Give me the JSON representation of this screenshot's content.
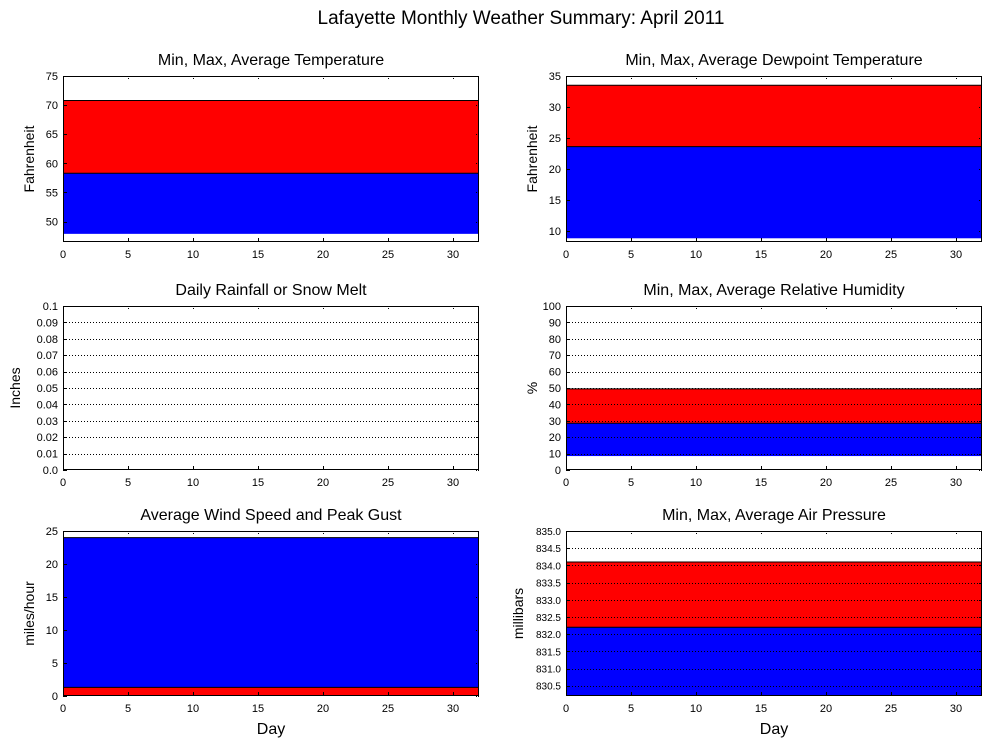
{
  "figure": {
    "title": "Lafayette Monthly Weather Summary: April 2011",
    "xlabel": "Day"
  },
  "chart_data": [
    {
      "type": "area",
      "title": "Min, Max, Average Temperature",
      "xlabel": "",
      "ylabel": "Fahrenheit",
      "xlim": [
        0,
        32
      ],
      "ylim": [
        46.5,
        75
      ],
      "xticks": [
        0,
        5,
        10,
        15,
        20,
        25,
        30
      ],
      "yticks": [
        50,
        55,
        60,
        65,
        70,
        75
      ],
      "ytick_labels": [
        "50",
        "55",
        "60",
        "65",
        "70",
        "75"
      ],
      "grid": false,
      "series": [
        {
          "color": "#ff0000",
          "y_low": 58.3,
          "y_high": 70.8
        },
        {
          "color": "#0000ff",
          "y_low": 47.9,
          "y_high": 58.3
        }
      ]
    },
    {
      "type": "area",
      "title": "Min, Max, Average Dewpoint Temperature",
      "xlabel": "",
      "ylabel": "Fahrenheit",
      "xlim": [
        0,
        32
      ],
      "ylim": [
        8.2,
        35
      ],
      "xticks": [
        0,
        5,
        10,
        15,
        20,
        25,
        30
      ],
      "yticks": [
        10,
        15,
        20,
        25,
        30,
        35
      ],
      "ytick_labels": [
        "10",
        "15",
        "20",
        "25",
        "30",
        "35"
      ],
      "grid": false,
      "series": [
        {
          "color": "#ff0000",
          "y_low": 23.6,
          "y_high": 33.5
        },
        {
          "color": "#0000ff",
          "y_low": 8.8,
          "y_high": 23.6
        }
      ]
    },
    {
      "type": "bar",
      "title": "Daily Rainfall or Snow Melt",
      "xlabel": "",
      "ylabel": "Inches",
      "xlim": [
        0,
        32
      ],
      "ylim": [
        0,
        0.1
      ],
      "xticks": [
        0,
        5,
        10,
        15,
        20,
        25,
        30
      ],
      "yticks": [
        0,
        0.01,
        0.02,
        0.03,
        0.04,
        0.05,
        0.06,
        0.07,
        0.08,
        0.09,
        0.1
      ],
      "ytick_labels": [
        "0.0",
        "0.01",
        "0.02",
        "0.03",
        "0.04",
        "0.05",
        "0.06",
        "0.07",
        "0.08",
        "0.09",
        "0.1"
      ],
      "grid": true,
      "series": []
    },
    {
      "type": "area",
      "title": "Min, Max, Average Relative Humidity",
      "xlabel": "",
      "ylabel": "%",
      "xlim": [
        0,
        32
      ],
      "ylim": [
        0,
        100
      ],
      "xticks": [
        0,
        5,
        10,
        15,
        20,
        25,
        30
      ],
      "yticks": [
        0,
        10,
        20,
        30,
        40,
        50,
        60,
        70,
        80,
        90,
        100
      ],
      "ytick_labels": [
        "0",
        "10",
        "20",
        "30",
        "40",
        "50",
        "60",
        "70",
        "80",
        "90",
        "100"
      ],
      "grid": true,
      "series": [
        {
          "color": "#ff0000",
          "y_low": 28.5,
          "y_high": 49.5
        },
        {
          "color": "#0000ff",
          "y_low": 8.5,
          "y_high": 28.5
        }
      ]
    },
    {
      "type": "area",
      "title": "Average Wind Speed and Peak Gust",
      "xlabel": "Day",
      "ylabel": "miles/hour",
      "xlim": [
        0,
        32
      ],
      "ylim": [
        0,
        25
      ],
      "xticks": [
        0,
        5,
        10,
        15,
        20,
        25,
        30
      ],
      "yticks": [
        0,
        5,
        10,
        15,
        20,
        25
      ],
      "ytick_labels": [
        "0",
        "5",
        "10",
        "15",
        "20",
        "25"
      ],
      "grid": false,
      "series": [
        {
          "color": "#0000ff",
          "y_low": 0,
          "y_high": 24.0
        },
        {
          "color": "#ff0000",
          "y_low": 0,
          "y_high": 1.3
        }
      ]
    },
    {
      "type": "area",
      "title": "Min, Max, Average Air Pressure",
      "xlabel": "Day",
      "ylabel": "millibars",
      "xlim": [
        0,
        32
      ],
      "ylim": [
        830.2,
        835
      ],
      "xticks": [
        0,
        5,
        10,
        15,
        20,
        25,
        30
      ],
      "yticks": [
        830.5,
        831.0,
        831.5,
        832.0,
        832.5,
        833.0,
        833.5,
        834.0,
        834.5,
        835.0
      ],
      "ytick_labels": [
        "830.5",
        "831.0",
        "831.5",
        "832.0",
        "832.5",
        "833.0",
        "833.5",
        "834.0",
        "834.5",
        "835.0"
      ],
      "grid": true,
      "series": [
        {
          "color": "#ff0000",
          "y_low": 832.2,
          "y_high": 834.1
        },
        {
          "color": "#0000ff",
          "y_low": 830.2,
          "y_high": 832.2
        }
      ]
    }
  ]
}
